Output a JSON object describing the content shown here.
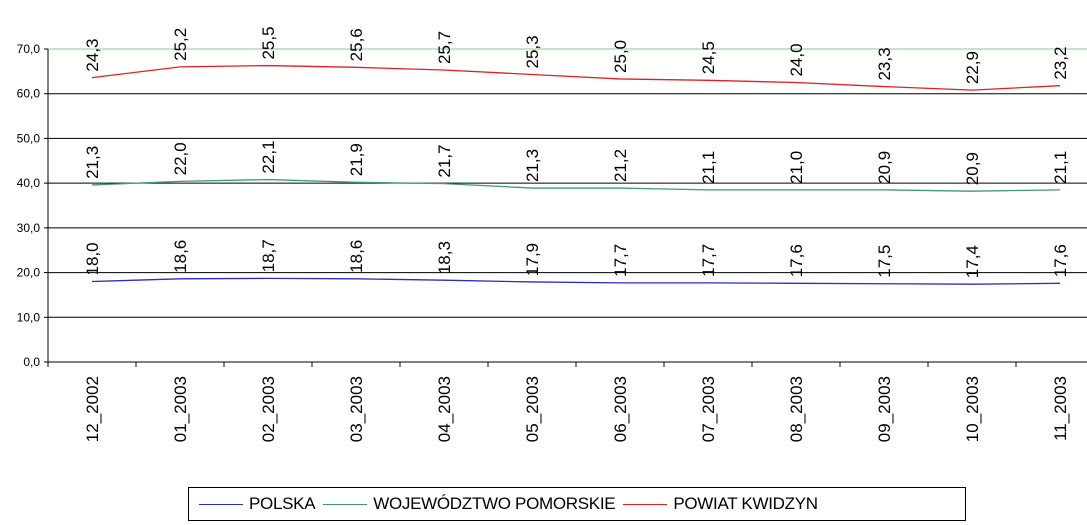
{
  "chart_data": {
    "type": "line",
    "categories": [
      "12_2002",
      "01_2003",
      "02_2003",
      "03_2003",
      "04_2003",
      "05_2003",
      "06_2003",
      "07_2003",
      "08_2003",
      "09_2003",
      "10_2003",
      "11_2003"
    ],
    "y_ticks": [
      "0,0",
      "10,0",
      "20,0",
      "30,0",
      "40,0",
      "50,0",
      "60,0",
      "70,0"
    ],
    "ylim": [
      0,
      70
    ],
    "grid": true,
    "legend_position": "bottom",
    "series": [
      {
        "name": "POLSKA",
        "color": "#2b2bc8",
        "values": [
          18.0,
          18.6,
          18.7,
          18.6,
          18.3,
          17.9,
          17.7,
          17.7,
          17.6,
          17.5,
          17.4,
          17.6
        ],
        "labels": [
          "18,0",
          "18,6",
          "18,7",
          "18,6",
          "18,3",
          "17,9",
          "17,7",
          "17,7",
          "17,6",
          "17,5",
          "17,4",
          "17,6"
        ],
        "label_offset": 0
      },
      {
        "name": "WOJEWÓDZTWO POMORSKIE",
        "color": "#3c9a78",
        "values": [
          39.6,
          40.4,
          40.8,
          40.2,
          39.9,
          38.9,
          38.9,
          38.5,
          38.5,
          38.5,
          38.2,
          38.5
        ],
        "labels": [
          "21,3",
          "22,0",
          "22,1",
          "21,9",
          "21,7",
          "21,3",
          "21,2",
          "21,1",
          "21,0",
          "20,9",
          "20,9",
          "21,1"
        ],
        "label_offset": 0
      },
      {
        "name": "POWIAT KWIDZYN",
        "color": "#e02020",
        "values": [
          63.6,
          66.0,
          66.3,
          65.9,
          65.3,
          64.3,
          63.3,
          63.0,
          62.5,
          61.6,
          60.8,
          61.8
        ],
        "labels": [
          "24,3",
          "25,2",
          "25,5",
          "25,6",
          "25,7",
          "25,3",
          "25,0",
          "24,5",
          "24,0",
          "23,3",
          "22,9",
          "23,2"
        ],
        "label_offset": 0
      }
    ]
  }
}
